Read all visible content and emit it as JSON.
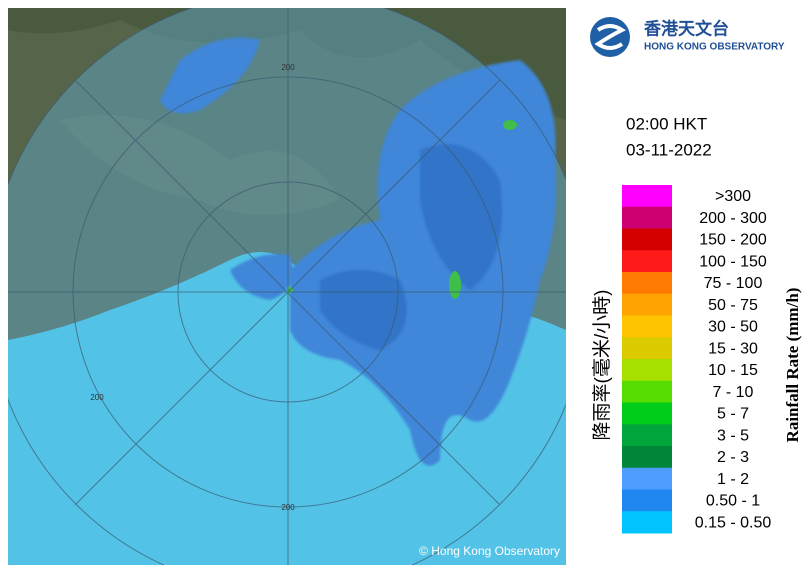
{
  "header": {
    "logo_chinese": "香港天文台",
    "logo_english": "HONG KONG OBSERVATORY"
  },
  "timestamp": {
    "time": "02:00 HKT",
    "date": "03-11-2022"
  },
  "legend": {
    "title_chinese": "降雨率(毫米/小時)",
    "title_english": "Rainfall Rate (mm/h)",
    "items": [
      {
        "label": ">300",
        "color": "#ff00ff"
      },
      {
        "label": "200 - 300",
        "color": "#cc0070"
      },
      {
        "label": "150 - 200",
        "color": "#d40000"
      },
      {
        "label": "100 - 150",
        "color": "#ff1a1a"
      },
      {
        "label": "75 - 100",
        "color": "#ff7a00"
      },
      {
        "label": "50 - 75",
        "color": "#ffa300"
      },
      {
        "label": "30 - 50",
        "color": "#ffc400"
      },
      {
        "label": "15 - 30",
        "color": "#dccb00"
      },
      {
        "label": "10 - 15",
        "color": "#a6e000"
      },
      {
        "label": "7 - 10",
        "color": "#55dc00"
      },
      {
        "label": "5 - 7",
        "color": "#00cc1a"
      },
      {
        "label": "3 - 5",
        "color": "#00a63c"
      },
      {
        "label": "2 - 3",
        "color": "#00873a"
      },
      {
        "label": "1 - 2",
        "color": "#4f9dff"
      },
      {
        "label": "0.50 - 1",
        "color": "#1f86f0"
      },
      {
        "label": "0.15 - 0.50",
        "color": "#00c3ff"
      }
    ]
  },
  "map": {
    "range_labels": [
      "200",
      "200",
      "200"
    ],
    "copyright": "© Hong Kong Observatory"
  }
}
